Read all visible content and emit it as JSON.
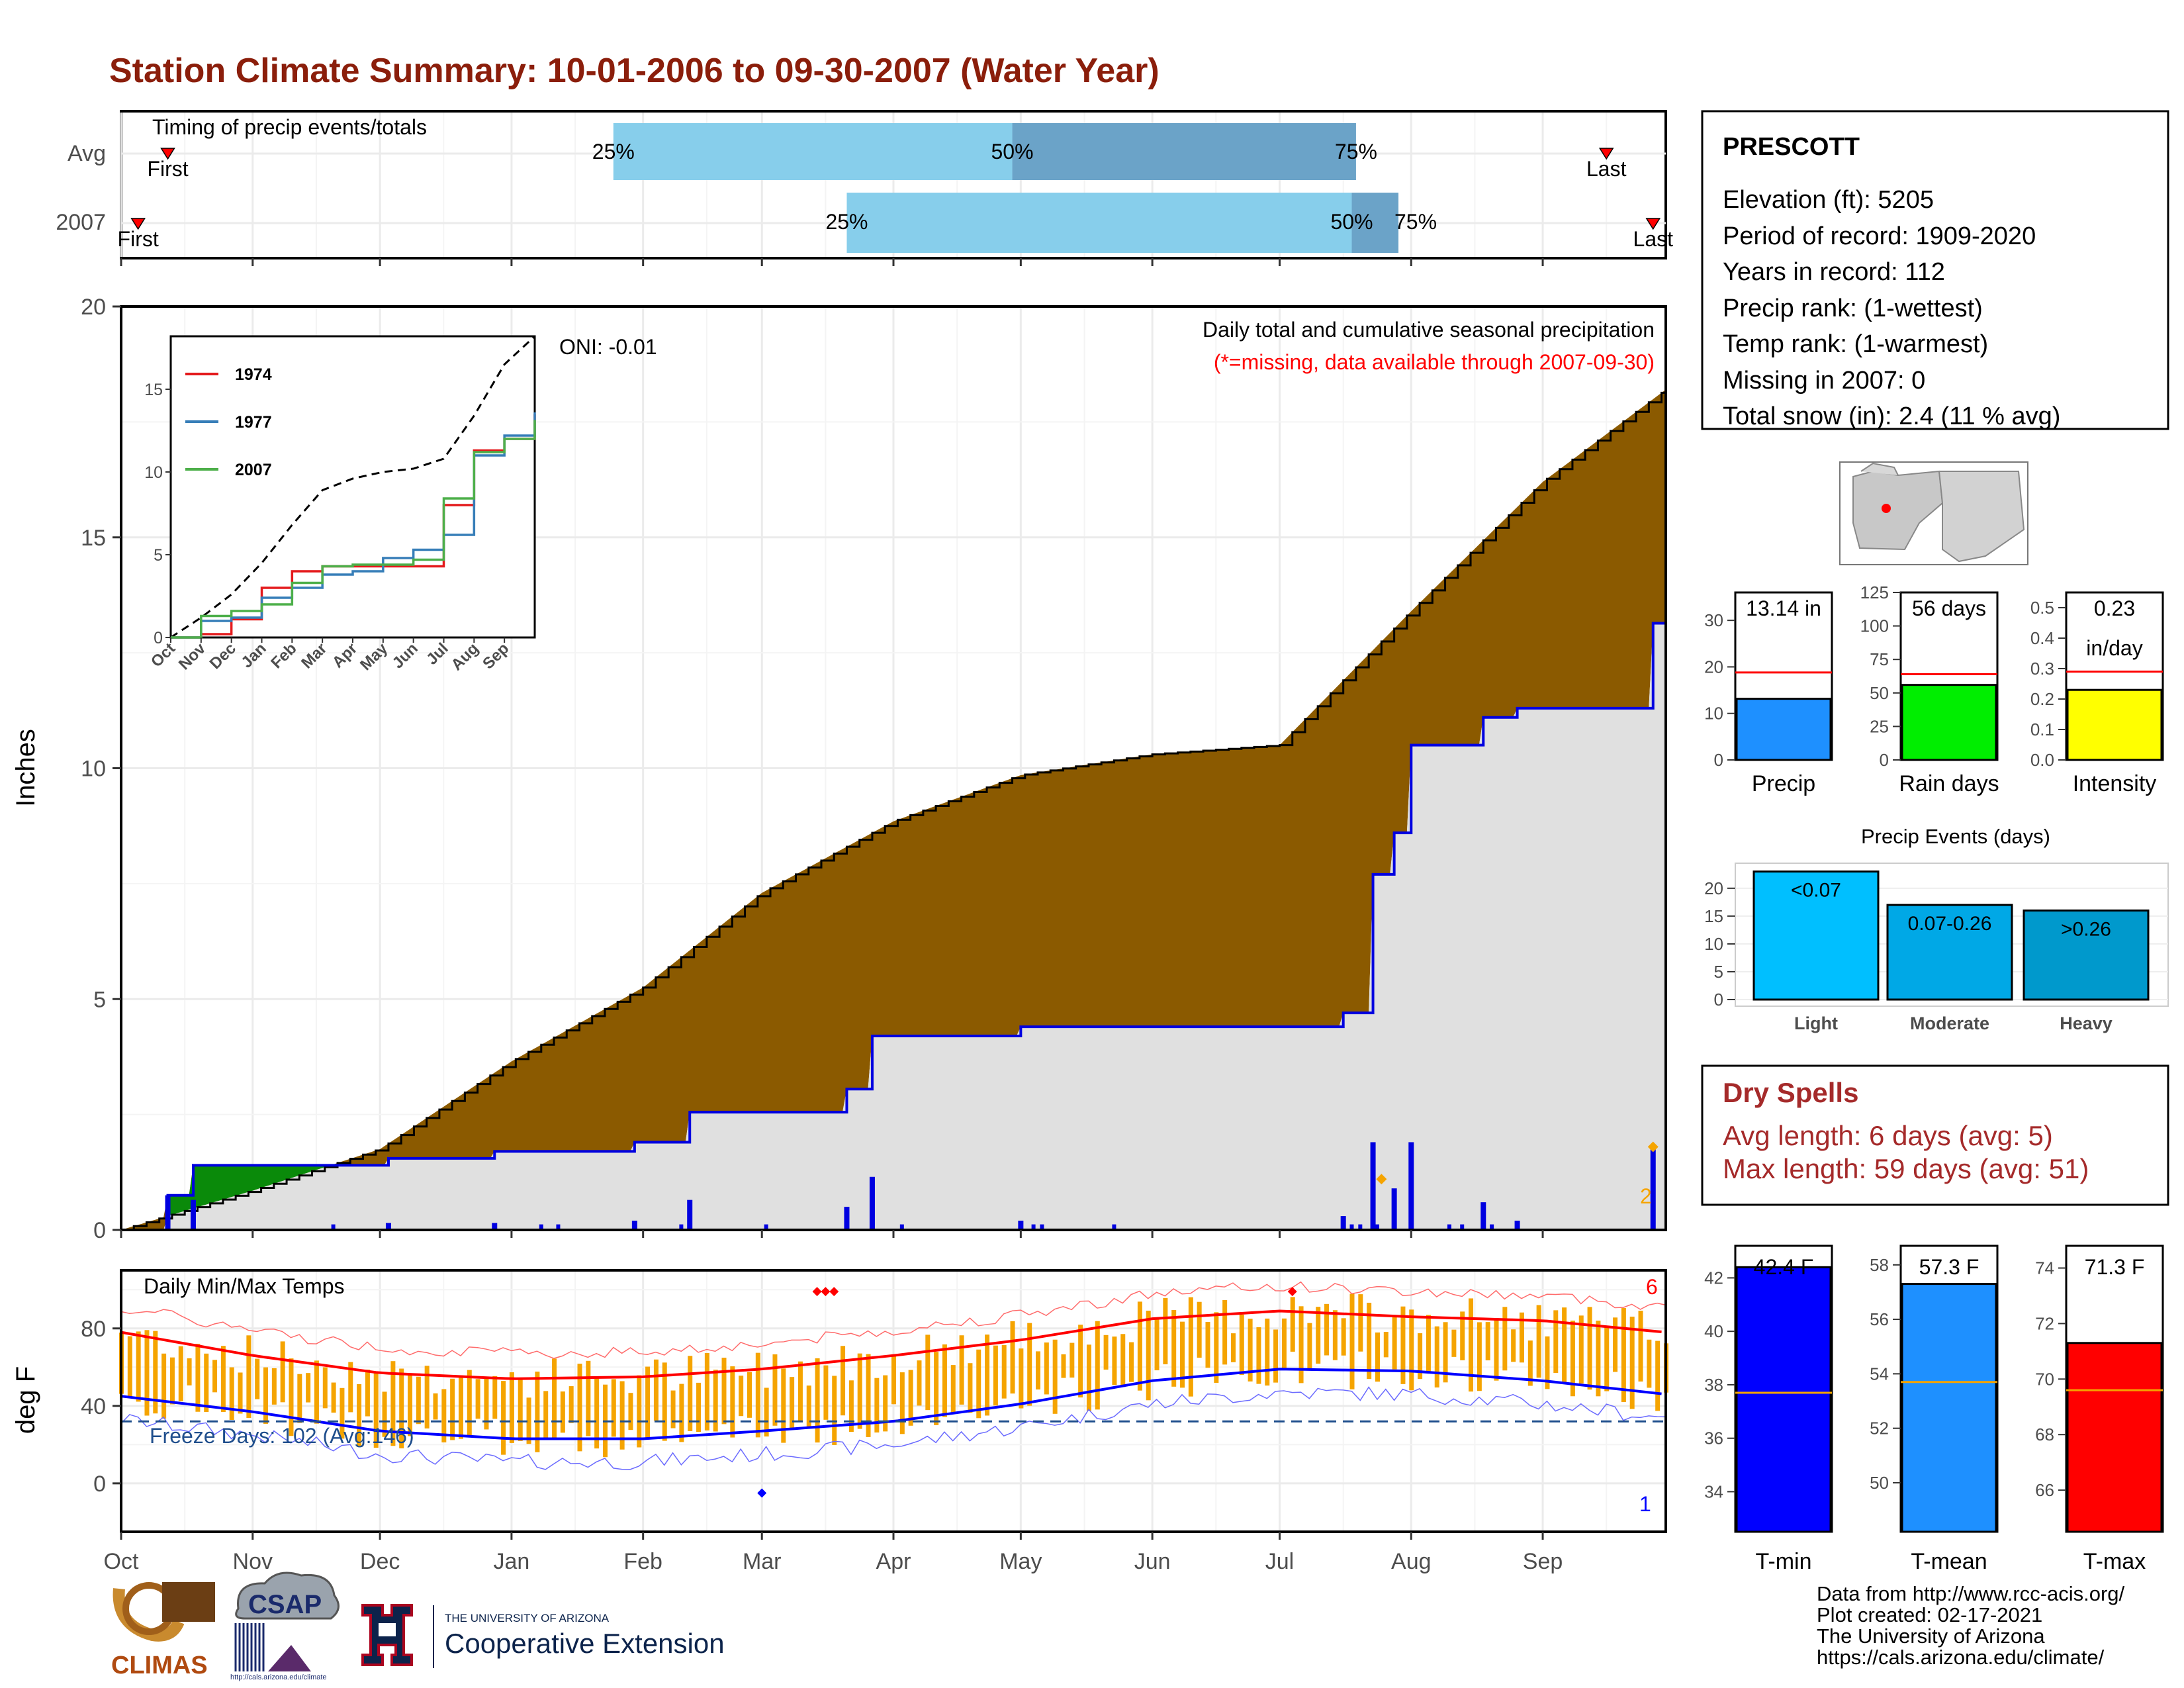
{
  "title": "Station Climate Summary: 10-01-2006 to 09-30-2007 (Water Year)",
  "colors": {
    "title": "#8b1e0b",
    "light_blue": "#87ceeb",
    "mid_blue": "#6ba3c8",
    "brown": "#8b5a00",
    "gray_fill": "#e0e0e0",
    "green": "#0a8a0a",
    "bar_blue": "#0000e0",
    "orange": "#f5a400",
    "temp_red": "#ff0000",
    "temp_blue": "#0000ff",
    "dry_red": "#a52a2a"
  },
  "timing_panel": {
    "label": "Timing of precip events/totals",
    "rows": [
      {
        "name": "Avg",
        "first_label": "First",
        "last_label": "Last",
        "p25_label": "25%",
        "p50_label": "50%",
        "p75_label": "75%"
      },
      {
        "name": "2007",
        "first_label": "First",
        "last_label": "Last",
        "p25_label": "25%",
        "p50_label": "50%",
        "p75_label": "75%"
      }
    ]
  },
  "precip_panel": {
    "ylabel": "Inches",
    "yticks": [
      "0",
      "5",
      "10",
      "15",
      "20"
    ],
    "oni": "ONI: -0.01",
    "note1": "Daily total and cumulative seasonal precipitation",
    "note2": "(*=missing, data available through 2007-09-30)",
    "max_count_label": "2"
  },
  "inset": {
    "legend": [
      "1974",
      "1977",
      "2007"
    ],
    "legend_colors": [
      "#e41a1c",
      "#377eb8",
      "#4daf4a"
    ],
    "yticks": [
      "0",
      "5",
      "10",
      "15"
    ],
    "xticks": [
      "Oct",
      "Nov",
      "Dec",
      "Jan",
      "Feb",
      "Mar",
      "Apr",
      "May",
      "Jun",
      "Jul",
      "Aug",
      "Sep"
    ]
  },
  "temp_panel": {
    "label": "Daily Min/Max Temps",
    "ylabel": "deg F",
    "yticks": [
      "0",
      "40",
      "80"
    ],
    "freeze": "Freeze Days: 102 (Avg:146)",
    "top_count": "6",
    "bottom_count": "1"
  },
  "months": [
    "Oct",
    "Nov",
    "Dec",
    "Jan",
    "Feb",
    "Mar",
    "Apr",
    "May",
    "Jun",
    "Jul",
    "Aug",
    "Sep"
  ],
  "station": {
    "name": "PRESCOTT",
    "lines": [
      "Elevation (ft): 5205",
      "Period of record: 1909-2020",
      "Years in record: 112",
      "Precip rank:  (1-wettest)",
      "Temp rank:  (1-warmest)",
      "Missing in 2007: 0",
      "Total snow (in): 2.4 (11 % avg)"
    ]
  },
  "summary_bars": [
    {
      "name": "Precip",
      "value": 13.14,
      "avg": 18.8,
      "label_line1": "13.14 in",
      "label_line2": "",
      "ticks": [
        "0",
        "10",
        "20",
        "30"
      ],
      "ymax": 36,
      "color": "#1e90ff"
    },
    {
      "name": "Rain days",
      "value": 56,
      "avg": 64,
      "label_line1": "56 days",
      "label_line2": "",
      "ticks": [
        "0",
        "25",
        "50",
        "75",
        "100",
        "125"
      ],
      "ymax": 125,
      "color": "#00ee00"
    },
    {
      "name": "Intensity",
      "value": 0.23,
      "avg": 0.29,
      "label_line1": "0.23",
      "label_line2": "in/day",
      "ticks": [
        "0.0",
        "0.1",
        "0.2",
        "0.3",
        "0.4",
        "0.5"
      ],
      "ymax": 0.55,
      "color": "#ffff00"
    }
  ],
  "events": {
    "title": "Precip Events (days)",
    "yticks": [
      "0",
      "5",
      "10",
      "15",
      "20"
    ],
    "bars": [
      {
        "name": "Light",
        "value": 23,
        "label": "<0.07",
        "color": "#00bfff"
      },
      {
        "name": "Moderate",
        "value": 17,
        "label": "0.07-0.26",
        "color": "#00a8e6"
      },
      {
        "name": "Heavy",
        "value": 16,
        "label": ">0.26",
        "color": "#0099cc"
      }
    ]
  },
  "dry_spells": {
    "title": "Dry Spells",
    "line1": "Avg length: 6 days (avg: 5)",
    "line2": "Max length: 59 days (avg: 51)"
  },
  "temp_bars": [
    {
      "name": "T-min",
      "value": 42.4,
      "avg": 37.7,
      "label": "42.4 F",
      "ticks": [
        "34",
        "36",
        "38",
        "40",
        "42"
      ],
      "ymin": 32.5,
      "ymax": 43.2,
      "color": "#0000ff"
    },
    {
      "name": "T-mean",
      "value": 57.3,
      "avg": 53.7,
      "label": "57.3 F",
      "ticks": [
        "50",
        "52",
        "54",
        "56",
        "58"
      ],
      "ymin": 48.2,
      "ymax": 58.7,
      "color": "#1e90ff"
    },
    {
      "name": "T-max",
      "value": 71.3,
      "avg": 69.6,
      "label": "71.3 F",
      "ticks": [
        "66",
        "68",
        "70",
        "72",
        "74"
      ],
      "ymin": 64.5,
      "ymax": 74.8,
      "color": "#ff0000"
    }
  ],
  "logos": {
    "climas": "CLIMAS",
    "csap": "CSAP",
    "csap_url": "http://cals.arizona.edu/climate",
    "ua_line1": "THE UNIVERSITY OF ARIZONA",
    "ua_line2": "Cooperative Extension"
  },
  "credits": [
    "Data from http://www.rcc-acis.org/",
    "Plot created: 02-17-2021",
    "The University of Arizona",
    "https://cals.arizona.edu/climate/"
  ],
  "chart_data": [
    {
      "type": "bar",
      "title": "Timing of precip events/totals",
      "categories": [
        "Avg",
        "2007"
      ],
      "series": [
        {
          "name": "First",
          "values": [
            "10-12",
            "10-05"
          ]
        },
        {
          "name": "25%",
          "values": [
            "01-25",
            "03-21"
          ]
        },
        {
          "name": "50%",
          "values": [
            "04-29",
            "07-18"
          ]
        },
        {
          "name": "75%",
          "values": [
            "07-19",
            "07-29"
          ]
        },
        {
          "name": "Last",
          "values": [
            "09-16",
            "09-27"
          ]
        }
      ]
    },
    {
      "type": "area",
      "title": "Daily total and cumulative seasonal precipitation",
      "ylabel": "Inches",
      "ylim": [
        0,
        20
      ],
      "xlim": [
        "2006-10-01",
        "2007-09-30"
      ],
      "series": [
        {
          "name": "Average cumulative (brown top)",
          "x": [
            "2006-10-01",
            "2006-11-01",
            "2006-12-01",
            "2007-01-01",
            "2007-02-01",
            "2007-03-01",
            "2007-04-01",
            "2007-05-01",
            "2007-06-01",
            "2007-07-01",
            "2007-08-01",
            "2007-09-01",
            "2007-09-30"
          ],
          "values": [
            0.0,
            0.85,
            1.75,
            3.65,
            5.25,
            7.3,
            8.85,
            9.85,
            10.3,
            10.5,
            13.4,
            16.2,
            18.2
          ]
        },
        {
          "name": "2007 cumulative (blue line)",
          "x": [
            "2006-10-01",
            "2006-10-12",
            "2006-10-18",
            "2006-11-15",
            "2006-12-03",
            "2006-12-28",
            "2007-01-30",
            "2007-02-12",
            "2007-03-21",
            "2007-03-27",
            "2007-05-01",
            "2007-07-16",
            "2007-07-23",
            "2007-07-28",
            "2007-08-01",
            "2007-08-18",
            "2007-08-26",
            "2007-09-27",
            "2007-09-30"
          ],
          "values": [
            0.0,
            0.75,
            1.4,
            1.4,
            1.55,
            1.7,
            1.9,
            2.55,
            3.05,
            4.2,
            4.4,
            4.7,
            7.7,
            8.6,
            10.5,
            11.1,
            11.3,
            13.14,
            13.14
          ]
        }
      ]
    },
    {
      "type": "line",
      "title": "",
      "xlim": [
        "Oct",
        "Sep"
      ],
      "ylim": [
        0,
        18
      ],
      "series": [
        {
          "name": "",
          "x": [
            0,
            1,
            2,
            3,
            4,
            5,
            6,
            7,
            8,
            9,
            10,
            11,
            12
          ],
          "values": [
            0,
            1.2,
            2.6,
            4.5,
            6.8,
            8.9,
            9.6,
            10.0,
            10.2,
            10.8,
            13.4,
            16.5,
            18.2
          ]
        },
        {
          "name": "1974",
          "x": [
            0,
            1,
            2,
            3,
            4,
            5,
            6,
            7,
            8,
            9,
            10,
            11,
            12
          ],
          "values": [
            0,
            0.2,
            1.1,
            3.0,
            4.0,
            4.3,
            4.3,
            4.3,
            4.3,
            8.0,
            11.3,
            12.0,
            13.5
          ]
        },
        {
          "name": "1977",
          "x": [
            0,
            1,
            2,
            3,
            4,
            5,
            6,
            7,
            8,
            9,
            10,
            11,
            12
          ],
          "values": [
            0,
            1.0,
            1.2,
            2.4,
            3.0,
            3.8,
            4.0,
            4.8,
            5.3,
            6.2,
            11.0,
            12.2,
            13.6
          ]
        },
        {
          "name": "2007",
          "x": [
            0,
            1,
            2,
            3,
            4,
            5,
            6,
            7,
            8,
            9,
            10,
            11,
            12
          ],
          "values": [
            0,
            1.3,
            1.6,
            2.0,
            3.3,
            4.3,
            4.4,
            4.4,
            4.7,
            8.4,
            11.2,
            12.0,
            13.14
          ]
        }
      ]
    },
    {
      "type": "line",
      "title": "Daily Min/Max Temps",
      "ylabel": "deg F",
      "ylim": [
        -25,
        110
      ],
      "series": [
        {
          "name": "Avg max",
          "x": [
            "Oct",
            "Nov",
            "Dec",
            "Jan",
            "Feb",
            "Mar",
            "Apr",
            "May",
            "Jun",
            "Jul",
            "Aug",
            "Sep",
            "Sep-30"
          ],
          "values": [
            78,
            66,
            57,
            54,
            55,
            59,
            66,
            74,
            85,
            89,
            86,
            84,
            78
          ]
        },
        {
          "name": "Avg min",
          "x": [
            "Oct",
            "Nov",
            "Dec",
            "Jan",
            "Feb",
            "Mar",
            "Apr",
            "May",
            "Jun",
            "Jul",
            "Aug",
            "Sep",
            "Sep-30"
          ],
          "values": [
            45,
            37,
            27,
            23,
            23,
            27,
            32,
            41,
            53,
            59,
            58,
            53,
            46
          ]
        },
        {
          "name": "Freeze line",
          "x": [
            "Oct",
            "Sep-30"
          ],
          "values": [
            32,
            32
          ]
        }
      ]
    },
    {
      "type": "bar",
      "title": "Precip Events (days)",
      "categories": [
        "Light",
        "Moderate",
        "Heavy"
      ],
      "values": [
        23,
        17,
        16
      ]
    },
    {
      "type": "bar",
      "title": "",
      "categories": [
        "Precip",
        "Rain days",
        "Intensity"
      ],
      "values": [
        13.14,
        56,
        0.23
      ]
    },
    {
      "type": "bar",
      "title": "",
      "categories": [
        "T-min",
        "T-mean",
        "T-max"
      ],
      "values": [
        42.4,
        57.3,
        71.3
      ]
    }
  ]
}
